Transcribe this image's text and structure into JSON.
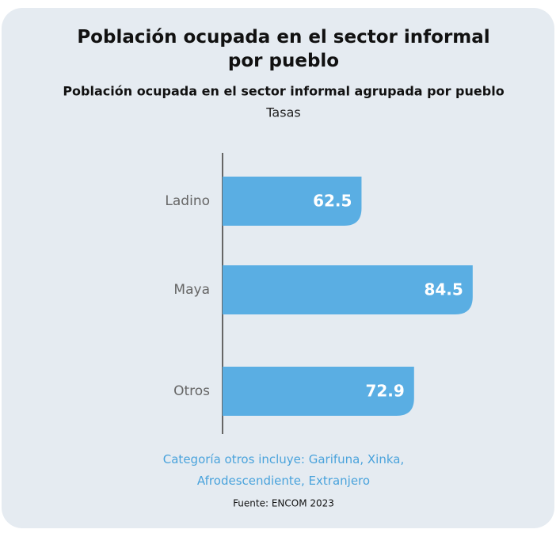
{
  "chart_data": {
    "type": "bar",
    "orientation": "horizontal",
    "title": "Población ocupada en el sector informal por pueblo",
    "subtitle": "Población ocupada en el sector informal agrupada por pueblo",
    "axis_label": "Tasas",
    "categories": [
      "Ladino",
      "Maya",
      "Otros"
    ],
    "values": [
      62.5,
      84.5,
      72.9
    ],
    "color": "#5aaee3",
    "xlim": [
      35,
      85
    ],
    "note": "Categoría otros incluye: Garifuna, Xinka, Afrodescendiente, Extranjero",
    "source": "Fuente: ENCOM 2023"
  }
}
